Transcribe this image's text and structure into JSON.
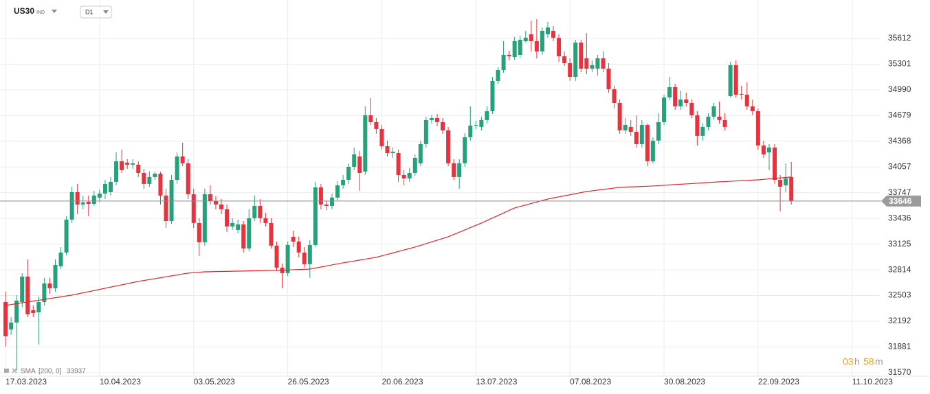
{
  "header": {
    "symbol": "US30",
    "symbol_type": "IND",
    "timeframe": "D1"
  },
  "countdown": {
    "hours": "03",
    "hours_unit": "h",
    "minutes": "58",
    "minutes_unit": "m"
  },
  "chart_data": {
    "type": "candlestick",
    "up_color": "#26a17b",
    "down_color": "#e8323e",
    "grid": true,
    "xlim": [
      -1,
      158
    ],
    "ylim": [
      31528,
      36077
    ],
    "xticks": [
      {
        "value": 0,
        "label": "17.03.2023"
      },
      {
        "value": 17,
        "label": "10.04.2023"
      },
      {
        "value": 34,
        "label": "03.05.2023"
      },
      {
        "value": 51,
        "label": "26.05.2023"
      },
      {
        "value": 68,
        "label": "20.06.2023"
      },
      {
        "value": 85,
        "label": "13.07.2023"
      },
      {
        "value": 102,
        "label": "07.08.2023"
      },
      {
        "value": 119,
        "label": "30.08.2023"
      },
      {
        "value": 136,
        "label": "22.09.2023"
      },
      {
        "value": 153,
        "label": "11.10.2023"
      }
    ],
    "yticks": [
      31570,
      31881,
      32192,
      32503,
      32814,
      33125,
      33436,
      33747,
      34057,
      34368,
      34679,
      34990,
      35301,
      35612
    ],
    "series": [
      {
        "name": "US30",
        "open": [
          32425,
          32093,
          32176,
          32425,
          32732,
          32325,
          32300,
          32425,
          32649,
          32591,
          32857,
          33023,
          33421,
          33753,
          33604,
          33637,
          33612,
          33687,
          33736,
          33753,
          33878,
          34127,
          34110,
          34085,
          34085,
          33985,
          33853,
          33936,
          33977,
          33712,
          33404,
          33902,
          34185,
          34102,
          33728,
          33380,
          33147,
          33728,
          33645,
          33604,
          33546,
          33338,
          33297,
          33363,
          33072,
          33438,
          33587,
          33438,
          33380,
          33106,
          32840,
          32774,
          33214,
          33155,
          33023,
          32882,
          33114,
          33811,
          33604,
          33587,
          33687,
          33836,
          33902,
          34060,
          34185,
          34002,
          34683,
          34600,
          34517,
          34309,
          34226,
          34226,
          33960,
          33919,
          33985,
          34102,
          34334,
          34625,
          34649,
          34600,
          34500,
          34102,
          33936,
          34102,
          34417,
          34558,
          34542,
          34625,
          34732,
          35098,
          35230,
          35413,
          35388,
          35413,
          35579,
          35662,
          35579,
          35455,
          35662,
          35704,
          35621,
          35396,
          35313,
          35147,
          35562,
          35372,
          35247,
          35247,
          35372,
          35247,
          34998,
          34832,
          34500,
          34542,
          34483,
          34334,
          34566,
          34127,
          34376,
          34600,
          34898,
          35023,
          34791,
          34874,
          34832,
          34683,
          34434,
          34542,
          34666,
          34666,
          34625,
          34915,
          35289,
          34940,
          34932,
          34791,
          34732,
          34317,
          34234,
          34293,
          33902,
          33836,
          33936
        ],
        "high": [
          32550,
          32242,
          32508,
          32774,
          32940,
          32384,
          32491,
          32716,
          32716,
          32940,
          33089,
          33463,
          33819,
          33853,
          33712,
          33712,
          33770,
          33786,
          33902,
          33936,
          34234,
          34268,
          34151,
          34151,
          34127,
          34035,
          34002,
          34002,
          34002,
          33795,
          33960,
          34234,
          34351,
          34151,
          33795,
          33438,
          33795,
          33836,
          33703,
          33670,
          33604,
          33438,
          33421,
          33404,
          33546,
          33712,
          33670,
          33504,
          33438,
          33155,
          32890,
          33155,
          33288,
          33214,
          33089,
          33172,
          33878,
          33853,
          33653,
          33736,
          33886,
          33960,
          34102,
          34293,
          34251,
          34791,
          34890,
          34649,
          34566,
          34376,
          34293,
          34268,
          34019,
          34044,
          34210,
          34376,
          34666,
          34683,
          34699,
          34649,
          34542,
          34151,
          34151,
          34467,
          34791,
          34616,
          34666,
          34791,
          35147,
          35264,
          35579,
          35463,
          35629,
          35645,
          35704,
          35828,
          35845,
          35745,
          35811,
          35762,
          35662,
          35455,
          35372,
          35596,
          35596,
          35679,
          35347,
          35413,
          35455,
          35313,
          35040,
          34874,
          34649,
          34625,
          34683,
          34625,
          34583,
          34417,
          34708,
          34932,
          35147,
          35064,
          34981,
          34957,
          34874,
          34732,
          34583,
          34708,
          34832,
          34849,
          34708,
          35330,
          35347,
          35040,
          35081,
          34874,
          34766,
          34376,
          34334,
          34334,
          33960,
          34102,
          34118
        ],
        "low": [
          31886,
          32027,
          31595,
          32359,
          32242,
          32242,
          31910,
          32384,
          32525,
          32550,
          32823,
          32989,
          33380,
          33487,
          33546,
          33463,
          33587,
          33629,
          33670,
          33712,
          33836,
          33985,
          34035,
          34035,
          33936,
          33795,
          33819,
          33902,
          33604,
          33321,
          33371,
          33853,
          34068,
          33670,
          33321,
          32981,
          33106,
          33604,
          33546,
          33487,
          33272,
          33297,
          33255,
          33023,
          33039,
          33404,
          33380,
          33338,
          33072,
          32799,
          32591,
          32740,
          33089,
          32965,
          32840,
          32716,
          33089,
          33546,
          33537,
          33546,
          33653,
          33795,
          33853,
          34019,
          33770,
          33960,
          34566,
          34459,
          34268,
          34185,
          34168,
          33878,
          33836,
          33878,
          33952,
          34068,
          34293,
          34583,
          34550,
          34459,
          34068,
          33902,
          33795,
          34060,
          34376,
          34517,
          34500,
          34583,
          34699,
          35064,
          35197,
          35347,
          35355,
          35380,
          35562,
          35455,
          35372,
          35413,
          35621,
          35579,
          35330,
          35280,
          35098,
          35098,
          35206,
          35181,
          35206,
          35164,
          35206,
          34957,
          34766,
          34459,
          34459,
          34434,
          34293,
          34293,
          34068,
          34102,
          34334,
          34566,
          34865,
          34749,
          34749,
          34791,
          34649,
          34317,
          34376,
          34500,
          34633,
          34583,
          34500,
          34898,
          34898,
          34874,
          34749,
          34683,
          34268,
          34168,
          34019,
          33853,
          33521,
          33753,
          33604
        ],
        "close": [
          32010,
          32176,
          32442,
          32732,
          32276,
          32292,
          32425,
          32649,
          32591,
          32873,
          33023,
          33421,
          33753,
          33604,
          33629,
          33612,
          33712,
          33736,
          33853,
          33878,
          34127,
          34019,
          34085,
          34102,
          33985,
          33853,
          33936,
          33977,
          33712,
          33404,
          33902,
          34185,
          34102,
          33728,
          33380,
          33147,
          33728,
          33645,
          33604,
          33546,
          33338,
          33380,
          33363,
          33072,
          33438,
          33587,
          33438,
          33380,
          33106,
          32840,
          32774,
          33114,
          33155,
          33023,
          32882,
          33114,
          33811,
          33604,
          33587,
          33687,
          33836,
          33902,
          34060,
          34210,
          33985,
          34683,
          34600,
          34517,
          34309,
          34226,
          34243,
          33960,
          33919,
          33985,
          34168,
          34334,
          34625,
          34649,
          34600,
          34500,
          34102,
          33936,
          34102,
          34417,
          34558,
          34566,
          34625,
          34732,
          35098,
          35230,
          35413,
          35396,
          35579,
          35596,
          35621,
          35579,
          35455,
          35704,
          35745,
          35621,
          35396,
          35313,
          35147,
          35562,
          35247,
          35247,
          35289,
          35372,
          35247,
          34998,
          34832,
          34500,
          34566,
          34483,
          34334,
          34566,
          34127,
          34376,
          34600,
          34898,
          35023,
          34791,
          34874,
          34832,
          34683,
          34434,
          34542,
          34666,
          34791,
          34625,
          34542,
          35289,
          34932,
          34932,
          34791,
          34732,
          34317,
          34210,
          34293,
          33902,
          33819,
          33919,
          33646
        ]
      }
    ],
    "indicators": [
      {
        "name": "SMA",
        "params": "[200, 0]",
        "color": "#e0242b",
        "values": [
          32384,
          32394,
          32405,
          32415,
          32425,
          32436,
          32446,
          32456,
          32467,
          32477,
          32487,
          32498,
          32508,
          32522,
          32536,
          32549,
          32563,
          32577,
          32591,
          32605,
          32619,
          32632,
          32646,
          32660,
          32674,
          32685,
          32696,
          32707,
          32718,
          32730,
          32741,
          32752,
          32763,
          32774,
          32779,
          32785,
          32790,
          32791,
          32793,
          32794,
          32795,
          32797,
          32798,
          32799,
          32801,
          32802,
          32803,
          32805,
          32806,
          32807,
          32810,
          32812,
          32815,
          32818,
          32820,
          32823,
          32836,
          32848,
          32861,
          32873,
          32886,
          32898,
          32909,
          32920,
          32932,
          32943,
          32954,
          32965,
          32983,
          33000,
          33018,
          33036,
          33054,
          33071,
          33089,
          33110,
          33131,
          33151,
          33172,
          33193,
          33214,
          33242,
          33269,
          33297,
          33325,
          33352,
          33380,
          33410,
          33441,
          33471,
          33501,
          33532,
          33562,
          33580,
          33598,
          33616,
          33634,
          33652,
          33670,
          33683,
          33696,
          33709,
          33722,
          33735,
          33748,
          33761,
          33769,
          33778,
          33786,
          33794,
          33803,
          33811,
          33814,
          33817,
          33819,
          33822,
          33825,
          33828,
          33832,
          33836,
          33840,
          33845,
          33849,
          33853,
          33857,
          33861,
          33865,
          33870,
          33874,
          33878,
          33881,
          33885,
          33888,
          33892,
          33895,
          33899,
          33902,
          33908,
          33914,
          33920,
          33925,
          33931,
          33937
        ]
      }
    ]
  }
}
